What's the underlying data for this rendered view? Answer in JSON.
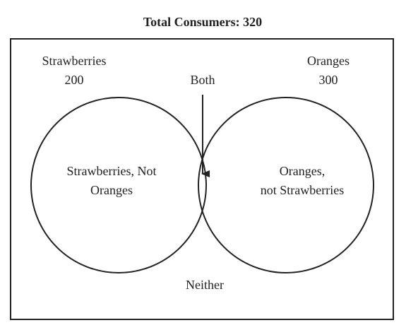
{
  "title": "Total Consumers: 320",
  "sets": [
    {
      "name": "Strawberries",
      "count": 200
    },
    {
      "name": "Oranges",
      "count": 300
    }
  ],
  "regions": {
    "both": "Both",
    "left_only": [
      "Strawberries, Not",
      "Oranges"
    ],
    "right_only": [
      "Oranges,",
      "not Strawberries"
    ],
    "neither": "Neither"
  }
}
